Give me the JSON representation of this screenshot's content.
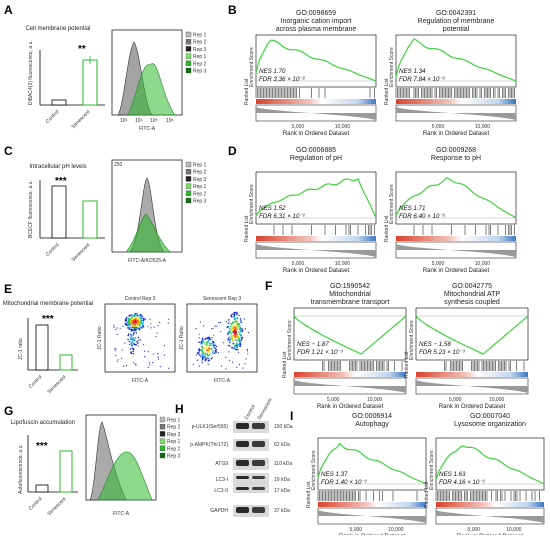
{
  "figure": {
    "panel_letters": {
      "A": "A",
      "B": "B",
      "C": "C",
      "D": "D",
      "E": "E",
      "F": "F",
      "G": "G",
      "H": "H",
      "I": "I"
    },
    "colors": {
      "control": "#222222",
      "senescent": "#2eb82e",
      "gsea_line": "#3fd23f",
      "rank_red": "#d9432b",
      "rank_blue": "#3a78c2"
    },
    "A": {
      "title": "Cell membrane potential",
      "ylabel": "DiBAC4(3) fluorescence, a.u.",
      "sig": "**",
      "xticks": [
        "Control",
        "Senescent"
      ],
      "flow_xlabel": "FITC-A",
      "flow_xticks": [
        "10³",
        "10⁴",
        "10⁵",
        "10⁶"
      ],
      "legend": [
        "Rep 1",
        "Rep 2",
        "Rep 3",
        "Rep 1",
        "Rep 2",
        "Rep 3"
      ]
    },
    "C": {
      "title": "Intracellular pH levels",
      "ylabel": "BCECF fluorescence, a.u.",
      "sig": "***",
      "xticks": [
        "Control",
        "Senescent"
      ],
      "flow_xlabel": "FITC-A/KO525-A",
      "flow_ytick": "250",
      "legend": [
        "Rep 1",
        "Rep 2",
        "Rep 3",
        "Rep 1",
        "Rep 2",
        "Rep 3"
      ]
    },
    "E": {
      "title": "Mitochondrial membrane potential",
      "ylabel": "JC-1 ratio",
      "sig": "***",
      "xticks": [
        "Control",
        "Senescent"
      ],
      "scatter_titles": [
        "Control Rep 3",
        "Senescent Rep 3"
      ],
      "scatter_xlabel": "FITC-A",
      "scatter_ylabel": "JC-1 Ratio"
    },
    "G": {
      "title": "Lipofuscin accumulation",
      "ylabel": "Autofluorescence, a.u.",
      "sig": "***",
      "xticks": [
        "Control",
        "Senescent"
      ],
      "flow_xlabel": "FITC-A",
      "legend": [
        "Rep 1",
        "Rep 2",
        "Rep 3",
        "Rep 1",
        "Rep 2",
        "Rep 3"
      ]
    },
    "H": {
      "columns": [
        "Control",
        "Senescent"
      ],
      "rows": [
        {
          "protein": "p-ULK1(Ser555)",
          "kda": "150 kDa"
        },
        {
          "protein": "p-AMPK(Thr172)",
          "kda": "62 kDa"
        },
        {
          "protein": "ATG9",
          "kda": "110 kDa"
        },
        {
          "protein": "LC3-I",
          "kda": "19 kDa"
        },
        {
          "protein": "LC3-II",
          "kda": "17 kDa"
        },
        {
          "protein": "GAPDH",
          "kda": "37 kDa"
        }
      ]
    },
    "gsea_common": {
      "ylabel_es": "Enrichment Score",
      "ylabel_rank": "Ranked List",
      "xlabel": "Rank in Ordered Dataset",
      "xticks": [
        "5,000",
        "10,000"
      ]
    },
    "B1": {
      "go": "GO:0098659",
      "name": "Inorganic cation import across plasma membrane",
      "nes": "NES 1.70",
      "fdr": "FDR 3.36 × 10⁻²"
    },
    "B2": {
      "go": "GO:0042391",
      "name": "Regulation of membrane potential",
      "nes": "NES 1.34",
      "fdr": "FDR 7.84 × 10⁻²"
    },
    "D1": {
      "go": "GO:0006885",
      "name": "Regulation of pH",
      "nes": "NES 1.52",
      "fdr": "FDR 6.31 × 10⁻²"
    },
    "D2": {
      "go": "GO:0009268",
      "name": "Response to pH",
      "nes": "NES 1.71",
      "fdr": "FDR 6.40 × 10⁻²"
    },
    "F1": {
      "go": "GO:1990542",
      "name": "Mitochondrial transmembrane transport",
      "nes": "NES − 1.87",
      "fdr": "FDR 1.21 × 10⁻³"
    },
    "F2": {
      "go": "GO:0042775",
      "name": "Mitochondrial ATP synthesis coupled electron transport",
      "nes": "NES − 1.58",
      "fdr": "FDR 5.23 × 10⁻³"
    },
    "I1": {
      "go": "GO:0006914",
      "name": "Autophagy",
      "nes": "NES 1.37",
      "fdr": "FDR 1.40 × 10⁻²"
    },
    "I2": {
      "go": "GO:0007040",
      "name": "Lysosome organization",
      "nes": "NES 1.63",
      "fdr": "FDR 4.16 × 10⁻²"
    }
  }
}
